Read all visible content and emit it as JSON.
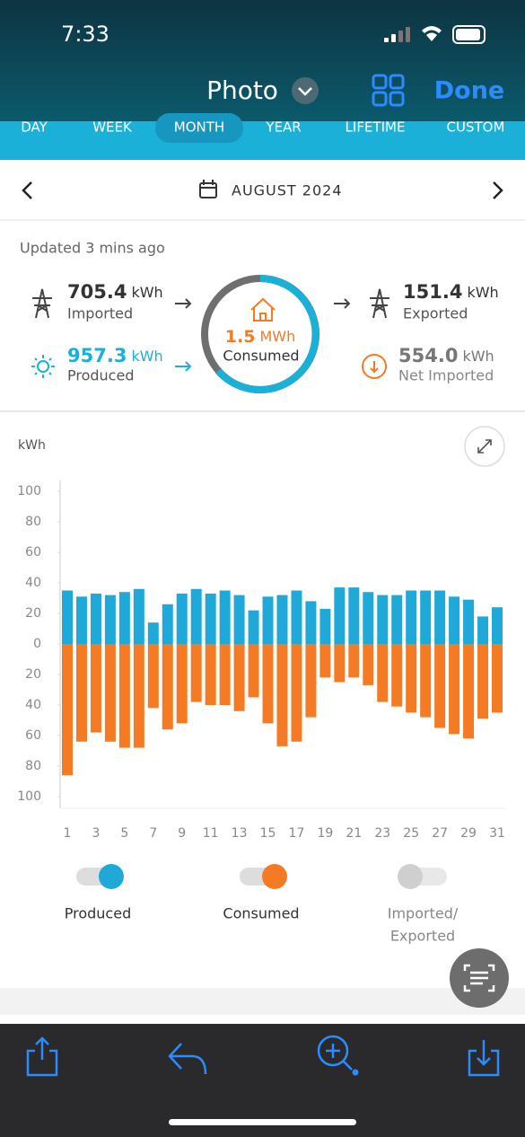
{
  "status_bar": {
    "time": "7:33"
  },
  "header": {
    "title": "Photo",
    "done": "Done"
  },
  "tabs": [
    "DAY",
    "WEEK",
    "MONTH",
    "YEAR",
    "LIFETIME",
    "CUSTOM"
  ],
  "active_tab": 2,
  "date": "AUGUST 2024",
  "summary": {
    "updated": "Updated 3 mins ago",
    "imported": {
      "value": "705.4",
      "unit": "kWh",
      "label": "Imported"
    },
    "exported": {
      "value": "151.4",
      "unit": "kWh",
      "label": "Exported"
    },
    "produced": {
      "value": "957.3",
      "unit": "kWh",
      "label": "Produced"
    },
    "net_imported": {
      "value": "554.0",
      "unit": "kWh",
      "label": "Net Imported"
    },
    "consumed": {
      "value": "1.5",
      "unit": "MWh",
      "label": "Consumed"
    }
  },
  "chart_data": {
    "type": "bar",
    "y_label": "kWh",
    "categories": [
      "1",
      null,
      "3",
      null,
      "5",
      null,
      "7",
      null,
      "9",
      null,
      "11",
      null,
      "13",
      null,
      "15",
      null,
      "17",
      null,
      "19",
      null,
      "21",
      null,
      "23",
      null,
      "25",
      null,
      "27",
      null,
      "29",
      null,
      "31"
    ],
    "series": [
      {
        "name": "Produced",
        "color": "#1ea9d8",
        "values": [
          35,
          31,
          33,
          32,
          34,
          36,
          14,
          26,
          33,
          36,
          33,
          35,
          32,
          22,
          31,
          32,
          35,
          28,
          23,
          37,
          37,
          34,
          32,
          32,
          35,
          35,
          35,
          31,
          29,
          18,
          24
        ]
      },
      {
        "name": "Consumed",
        "color": "#f47a24",
        "values": [
          -86,
          -64,
          -58,
          -64,
          -68,
          -68,
          -42,
          -56,
          -52,
          -38,
          -40,
          -40,
          -44,
          -35,
          -52,
          -67,
          -64,
          -48,
          -22,
          -25,
          -22,
          -27,
          -38,
          -41,
          -45,
          -48,
          -55,
          -59,
          -62,
          -49,
          -45
        ]
      }
    ],
    "ylim": [
      -100,
      100
    ],
    "yticks": [
      100,
      80,
      60,
      40,
      20,
      0,
      {
        "value": -20,
        "label": "20"
      },
      {
        "value": -40,
        "label": "40"
      },
      {
        "value": -60,
        "label": "60"
      },
      {
        "value": -80,
        "label": "80"
      },
      {
        "value": -100,
        "label": "100"
      }
    ],
    "toggle_off_label": [
      "Imported/",
      "Exported"
    ]
  }
}
